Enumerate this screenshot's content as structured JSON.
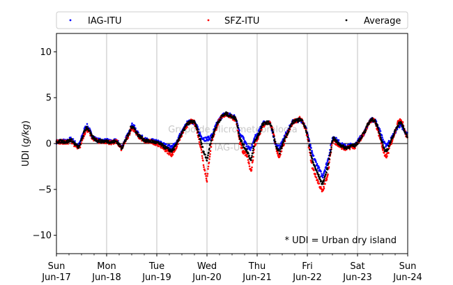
{
  "chart_data": {
    "type": "scatter",
    "title": "",
    "xlabel": "",
    "ylabel": "UDI (g/kg)",
    "ylabel_plain": "UDI (",
    "ylabel_italic": "g/kg",
    "ylabel_close": ")",
    "xlim": [
      0,
      7
    ],
    "ylim": [
      -12,
      12
    ],
    "yticks": [
      -10,
      -5,
      0,
      5,
      10
    ],
    "xticks": [
      {
        "day": 0,
        "weekday": "Sun",
        "date": "Jun-17"
      },
      {
        "day": 1,
        "weekday": "Mon",
        "date": "Jun-18"
      },
      {
        "day": 2,
        "weekday": "Tue",
        "date": "Jun-19"
      },
      {
        "day": 3,
        "weekday": "Wed",
        "date": "Jun-20"
      },
      {
        "day": 4,
        "weekday": "Thu",
        "date": "Jun-21"
      },
      {
        "day": 5,
        "weekday": "Fri",
        "date": "Jun-22"
      },
      {
        "day": 6,
        "weekday": "Sat",
        "date": "Jun-23"
      },
      {
        "day": 7,
        "weekday": "Sun",
        "date": "Jun-24"
      }
    ],
    "grid": "vertical",
    "legend_position": "top",
    "series": [
      {
        "name": "IAG-ITU",
        "color": "#0000ff"
      },
      {
        "name": "SFZ-ITU",
        "color": "#ff0000"
      },
      {
        "name": "Average",
        "color": "#000000"
      }
    ],
    "profile": {
      "x": [
        0.0,
        0.1,
        0.2,
        0.28,
        0.32,
        0.38,
        0.45,
        0.5,
        0.55,
        0.6,
        0.65,
        0.7,
        0.8,
        0.9,
        1.0,
        1.1,
        1.2,
        1.3,
        1.38,
        1.45,
        1.48,
        1.52,
        1.58,
        1.63,
        1.68,
        1.72,
        1.78,
        1.85,
        1.9,
        1.95,
        2.0,
        2.1,
        2.2,
        2.3,
        2.38,
        2.45,
        2.52,
        2.6,
        2.68,
        2.75,
        2.8,
        2.88,
        2.95,
        3.0,
        3.05,
        3.1,
        3.2,
        3.3,
        3.38,
        3.45,
        3.52,
        3.58,
        3.65,
        3.72,
        3.8,
        3.88,
        3.95,
        4.0,
        4.05,
        4.1,
        4.18,
        4.25,
        4.3,
        4.35,
        4.4,
        4.45,
        4.5,
        4.55,
        4.6,
        4.65,
        4.7,
        4.75,
        4.8,
        4.85,
        4.92,
        5.0,
        5.05,
        5.1,
        5.2,
        5.3,
        5.4,
        5.45,
        5.48,
        5.5,
        5.52,
        5.55,
        5.58,
        5.62,
        5.65,
        5.7,
        5.75,
        5.8,
        5.85,
        5.9,
        5.95,
        6.0,
        6.05,
        6.1,
        6.15,
        6.2,
        6.25,
        6.3,
        6.35,
        6.4,
        6.45,
        6.5,
        6.55,
        6.6,
        6.65,
        6.7,
        6.75,
        6.8,
        6.85,
        6.9,
        6.95,
        7.0
      ],
      "iag": [
        0.2,
        0.3,
        0.2,
        0.5,
        0.4,
        0.0,
        -0.2,
        0.6,
        1.4,
        2.0,
        1.6,
        0.9,
        0.4,
        0.3,
        0.3,
        0.2,
        0.3,
        -0.4,
        0.5,
        1.2,
        1.8,
        2.1,
        1.5,
        1.0,
        0.8,
        0.6,
        0.4,
        0.3,
        0.3,
        0.2,
        0.2,
        0.0,
        -0.3,
        -0.4,
        0.0,
        0.8,
        1.4,
        2.2,
        2.4,
        2.3,
        1.8,
        0.8,
        0.5,
        0.5,
        0.6,
        0.9,
        2.2,
        3.0,
        3.3,
        3.1,
        3.0,
        2.8,
        1.2,
        0.6,
        -0.4,
        -0.6,
        0.6,
        1.0,
        1.4,
        2.2,
        2.4,
        2.2,
        1.5,
        0.2,
        -0.4,
        -0.4,
        0.2,
        0.8,
        1.2,
        1.8,
        2.3,
        2.5,
        2.5,
        2.6,
        2.4,
        1.2,
        -0.1,
        -1.2,
        -2.4,
        -3.6,
        -2.0,
        -0.8,
        0.0,
        0.5,
        0.8,
        0.6,
        0.4,
        0.2,
        0.1,
        -0.2,
        -0.3,
        -0.3,
        -0.2,
        -0.2,
        0.0,
        0.2,
        0.6,
        1.0,
        1.3,
        2.0,
        2.5,
        2.6,
        2.5,
        2.0,
        1.3,
        0.5,
        -0.2,
        0.0,
        0.3,
        0.8,
        1.3,
        1.8,
        2.0,
        1.6,
        1.2,
        1.0
      ],
      "sfz": [
        0.2,
        0.2,
        0.1,
        0.3,
        0.2,
        -0.3,
        -0.6,
        0.2,
        1.0,
        1.6,
        1.3,
        0.7,
        0.3,
        0.2,
        0.2,
        0.1,
        0.2,
        -0.6,
        0.3,
        1.0,
        1.6,
        1.7,
        1.2,
        0.8,
        0.6,
        0.4,
        0.2,
        0.2,
        0.2,
        0.1,
        0.0,
        -0.3,
        -0.8,
        -1.2,
        -0.5,
        0.5,
        1.2,
        2.0,
        2.4,
        2.3,
        1.5,
        -0.5,
        -2.8,
        -4.0,
        -1.5,
        0.4,
        2.0,
        3.0,
        3.2,
        3.0,
        2.8,
        2.6,
        0.2,
        -1.0,
        -1.2,
        -3.2,
        -0.2,
        0.4,
        1.0,
        1.8,
        2.2,
        2.3,
        1.6,
        0.4,
        -1.0,
        -1.5,
        -0.5,
        0.3,
        1.0,
        1.6,
        2.2,
        2.5,
        2.5,
        2.7,
        2.3,
        0.8,
        -1.0,
        -2.6,
        -4.0,
        -5.3,
        -3.5,
        -1.6,
        -0.6,
        0.2,
        0.4,
        0.2,
        0.0,
        -0.2,
        -0.3,
        -0.4,
        -0.6,
        -0.5,
        -0.4,
        -0.3,
        -0.4,
        0.0,
        0.4,
        0.9,
        1.3,
        2.0,
        2.5,
        2.6,
        2.4,
        1.5,
        0.6,
        -0.5,
        -1.5,
        -1.2,
        -0.2,
        0.5,
        1.4,
        2.2,
        2.7,
        2.2,
        1.2,
        0.4
      ],
      "avg": [
        0.2,
        0.25,
        0.15,
        0.4,
        0.3,
        -0.15,
        -0.4,
        0.4,
        1.2,
        1.8,
        1.45,
        0.8,
        0.35,
        0.25,
        0.25,
        0.15,
        0.25,
        -0.5,
        0.4,
        1.1,
        1.7,
        1.9,
        1.35,
        0.9,
        0.7,
        0.5,
        0.3,
        0.25,
        0.25,
        0.15,
        0.1,
        -0.15,
        -0.55,
        -0.8,
        -0.25,
        0.65,
        1.3,
        2.1,
        2.4,
        2.3,
        1.65,
        0.15,
        -1.15,
        -1.75,
        -0.45,
        0.65,
        2.1,
        3.0,
        3.25,
        3.05,
        2.9,
        2.7,
        0.7,
        -0.2,
        -0.8,
        -1.9,
        0.2,
        0.7,
        1.2,
        2.0,
        2.3,
        2.25,
        1.55,
        0.3,
        -0.7,
        -0.95,
        -0.15,
        0.55,
        1.1,
        1.7,
        2.25,
        2.5,
        2.5,
        2.65,
        2.35,
        1.0,
        -0.55,
        -1.9,
        -3.2,
        -4.45,
        -2.75,
        -1.2,
        -0.3,
        0.35,
        0.6,
        0.4,
        0.2,
        0.0,
        -0.1,
        -0.3,
        -0.45,
        -0.4,
        -0.3,
        -0.25,
        -0.2,
        0.1,
        0.5,
        0.95,
        1.3,
        2.0,
        2.5,
        2.6,
        2.45,
        1.75,
        0.95,
        0.0,
        -0.85,
        -0.6,
        0.05,
        0.65,
        1.35,
        2.0,
        2.35,
        1.9,
        1.2,
        0.7
      ]
    },
    "annotation": "* UDI = Urban dry island",
    "watermark_lines": [
      "Grupo de Micrometeorologia",
      "IAG-USP"
    ]
  }
}
